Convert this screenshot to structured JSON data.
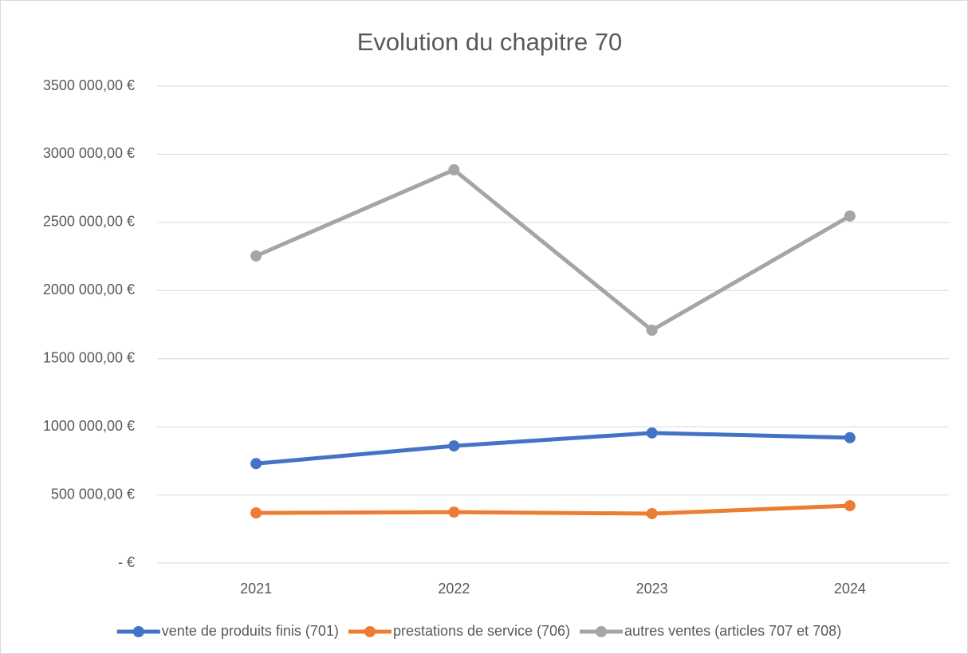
{
  "chart_data": {
    "type": "line",
    "title": "Evolution du chapitre 70",
    "categories": [
      "2021",
      "2022",
      "2023",
      "2024"
    ],
    "series": [
      {
        "name": "vente de produits finis (701)",
        "color": "#4472c4",
        "values": [
          730000,
          860000,
          955000,
          920000
        ]
      },
      {
        "name": "prestations de service (706)",
        "color": "#ed7d31",
        "values": [
          368000,
          374000,
          363000,
          421000
        ]
      },
      {
        "name": "autres ventes (articles 707 et 708)",
        "color": "#a5a5a5",
        "values": [
          2254000,
          2886000,
          1709000,
          2547000
        ]
      }
    ],
    "ylim": [
      0,
      3500000
    ],
    "yticks": [
      {
        "value": 0,
        "label": "-  €"
      },
      {
        "value": 500000,
        "label": "500 000,00 €"
      },
      {
        "value": 1000000,
        "label": "1000 000,00 €"
      },
      {
        "value": 1500000,
        "label": "1500 000,00 €"
      },
      {
        "value": 2000000,
        "label": "2000 000,00 €"
      },
      {
        "value": 2500000,
        "label": "2500 000,00 €"
      },
      {
        "value": 3000000,
        "label": "3000 000,00 €"
      },
      {
        "value": 3500000,
        "label": "3500 000,00 €"
      }
    ],
    "grid": true,
    "legend": "bottom"
  }
}
